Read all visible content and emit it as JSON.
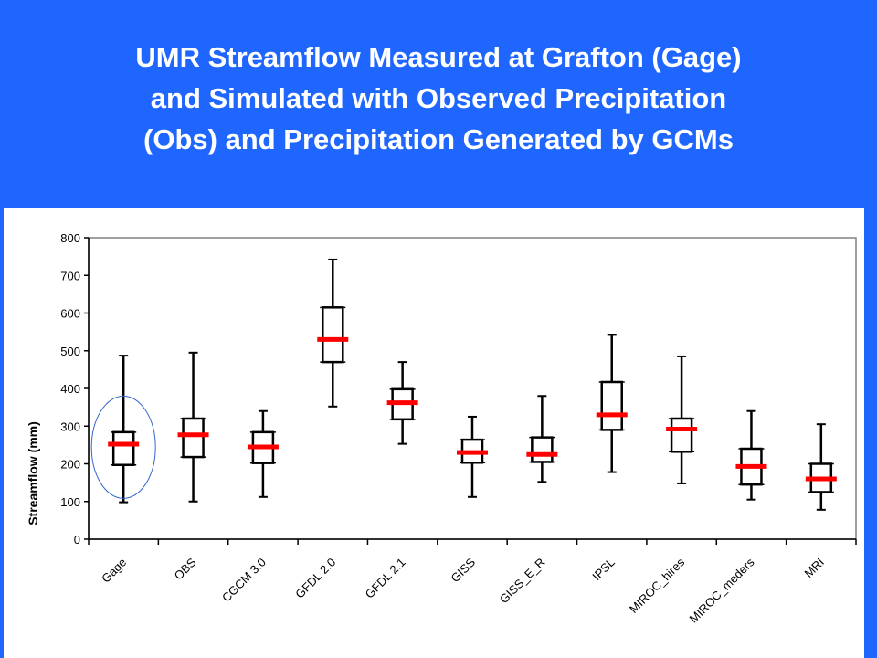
{
  "slide": {
    "title_lines": [
      "UMR Streamflow Measured at Grafton (Gage)",
      "and Simulated with Observed Precipitation",
      "(Obs) and Precipitation Generated by GCMs"
    ],
    "background_color": "#1f66ff"
  },
  "chart_data": {
    "type": "boxplot",
    "title": "UMR Streamflow Measured at Grafton (Gage) and Simulated with Observed Precipitation (Obs) and Precipitation Generated by GCMs",
    "ylabel": "Streamflow (mm)",
    "xlabel": "",
    "ylim": [
      0,
      800
    ],
    "yticks": [
      0,
      100,
      200,
      300,
      400,
      500,
      600,
      700,
      800
    ],
    "grid": false,
    "legend": "none",
    "median_color": "#ff0000",
    "categories": [
      "Gage",
      "OBS",
      "CGCM 3.0",
      "GFDL 2.0",
      "GFDL 2.1",
      "GISS",
      "GISS_E_R",
      "IPSL",
      "MIROC_hires",
      "MIROC_meders",
      "MRI"
    ],
    "series": [
      {
        "boxes": [
          {
            "min": 98,
            "q1": 197,
            "median": 252,
            "q3": 284,
            "max": 487
          },
          {
            "min": 100,
            "q1": 218,
            "median": 277,
            "q3": 320,
            "max": 495
          },
          {
            "min": 112,
            "q1": 202,
            "median": 245,
            "q3": 284,
            "max": 340
          },
          {
            "min": 352,
            "q1": 470,
            "median": 530,
            "q3": 615,
            "max": 742
          },
          {
            "min": 253,
            "q1": 318,
            "median": 362,
            "q3": 398,
            "max": 470
          },
          {
            "min": 112,
            "q1": 203,
            "median": 230,
            "q3": 264,
            "max": 325
          },
          {
            "min": 152,
            "q1": 205,
            "median": 225,
            "q3": 270,
            "max": 380
          },
          {
            "min": 178,
            "q1": 290,
            "median": 330,
            "q3": 417,
            "max": 542
          },
          {
            "min": 148,
            "q1": 232,
            "median": 292,
            "q3": 320,
            "max": 485
          },
          {
            "min": 105,
            "q1": 145,
            "median": 193,
            "q3": 240,
            "max": 340
          },
          {
            "min": 78,
            "q1": 125,
            "median": 160,
            "q3": 200,
            "max": 305
          }
        ]
      }
    ],
    "highlight_category": "Gage"
  }
}
